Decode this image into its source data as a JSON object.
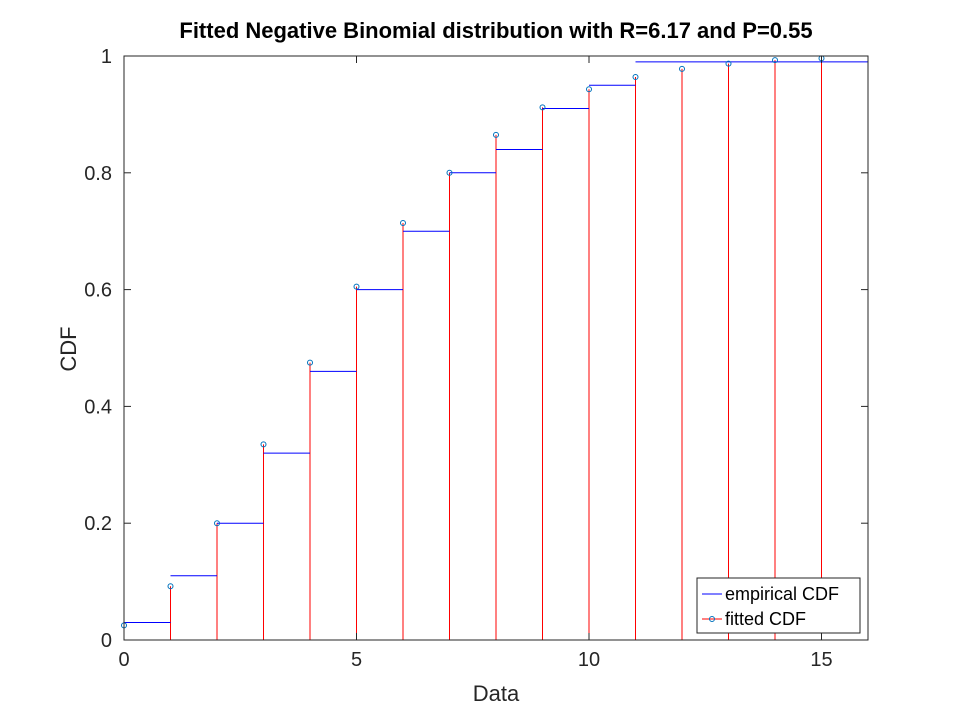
{
  "chart_data": {
    "type": "line",
    "title": "Fitted Negative Binomial distribution with R=6.17 and P=0.55",
    "xlabel": "Data",
    "ylabel": "CDF",
    "xlim": [
      0,
      16
    ],
    "ylim": [
      0,
      1
    ],
    "xticks": [
      0,
      5,
      10,
      15
    ],
    "yticks": [
      0,
      0.2,
      0.4,
      0.6,
      0.8,
      1
    ],
    "xtick_labels": [
      "0",
      "5",
      "10",
      "15"
    ],
    "ytick_labels": [
      "0",
      "0.2",
      "0.4",
      "0.6",
      "0.8",
      "1"
    ],
    "grid": false,
    "legend_position": "bottom-right",
    "series": [
      {
        "name": "empirical CDF",
        "style": "stairs",
        "color": "#0000ff",
        "x": [
          0,
          1,
          2,
          3,
          4,
          5,
          6,
          7,
          8,
          9,
          10,
          11,
          16
        ],
        "y": [
          0.03,
          0.11,
          0.2,
          0.32,
          0.46,
          0.6,
          0.7,
          0.8,
          0.84,
          0.91,
          0.95,
          0.99,
          0.99
        ]
      },
      {
        "name": "fitted CDF",
        "style": "stem",
        "color": "#ff0000",
        "marker_color": "#0072bd",
        "x": [
          0,
          1,
          2,
          3,
          4,
          5,
          6,
          7,
          8,
          9,
          10,
          11,
          12,
          13,
          14,
          15
        ],
        "y": [
          0.025,
          0.092,
          0.2,
          0.335,
          0.475,
          0.605,
          0.714,
          0.8,
          0.865,
          0.912,
          0.943,
          0.964,
          0.978,
          0.987,
          0.993,
          0.996
        ]
      }
    ]
  }
}
